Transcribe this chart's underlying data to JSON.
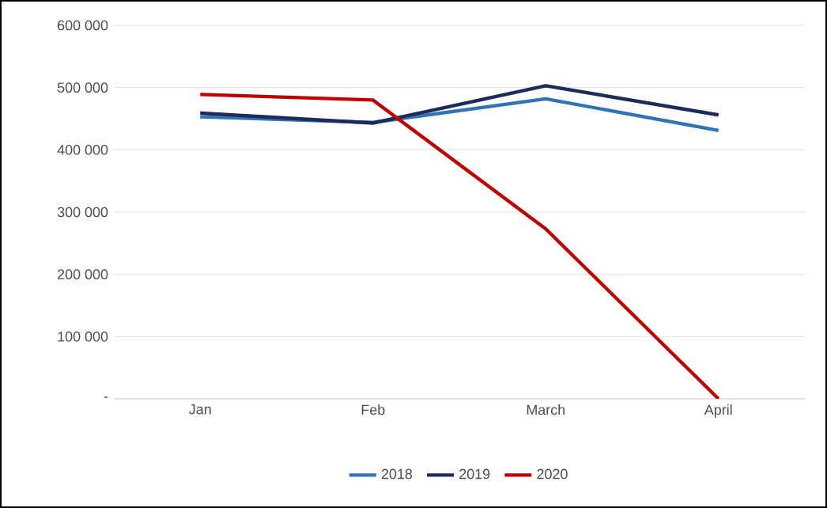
{
  "chart_data": {
    "type": "line",
    "categories": [
      "Jan",
      "Feb",
      "March",
      "April"
    ],
    "series": [
      {
        "name": "2018",
        "color": "#2e75b6",
        "values": [
          453000,
          444000,
          482000,
          431000
        ]
      },
      {
        "name": "2019",
        "color": "#1f2a5c",
        "values": [
          459000,
          443000,
          503000,
          456000
        ]
      },
      {
        "name": "2020",
        "color": "#c00000",
        "values": [
          489000,
          480000,
          273000,
          0
        ]
      }
    ],
    "ylim": [
      0,
      600000
    ],
    "yticks": [
      {
        "value": 0,
        "label": "-"
      },
      {
        "value": 100000,
        "label": "100 000"
      },
      {
        "value": 200000,
        "label": "200 000"
      },
      {
        "value": 300000,
        "label": "300 000"
      },
      {
        "value": 400000,
        "label": "400 000"
      },
      {
        "value": 500000,
        "label": "500 000"
      },
      {
        "value": 600000,
        "label": "600 000"
      }
    ],
    "grid": "y",
    "legend": "bottom",
    "marker": "none",
    "line_style": "solid"
  }
}
